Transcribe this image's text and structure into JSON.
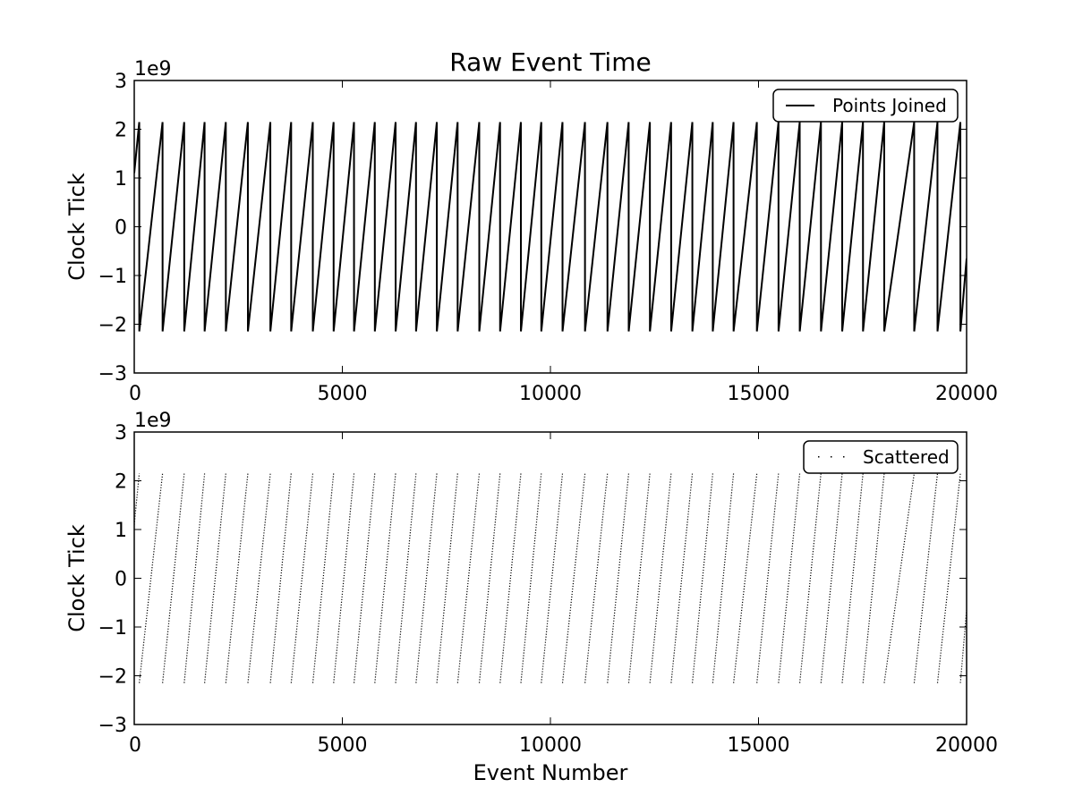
{
  "figure_title": "Raw Event Time",
  "chart_data": [
    {
      "type": "line",
      "title": "Raw Event Time",
      "xlabel": "",
      "ylabel": "Clock Tick",
      "y_offset_label": "1e9",
      "xlim": [
        0,
        20000
      ],
      "ylim": [
        -3,
        3
      ],
      "x_ticks": [
        "0",
        "5000",
        "10000",
        "15000",
        "20000"
      ],
      "y_ticks": [
        "3",
        "2",
        "1",
        "0",
        "−1",
        "−2",
        "−3"
      ],
      "y_tick_values": [
        3,
        2,
        1,
        0,
        -1,
        -2,
        -3
      ],
      "x_tick_values": [
        0,
        5000,
        10000,
        15000,
        20000
      ],
      "legend": {
        "label": "Points Joined",
        "placement": "upper right"
      },
      "grid": false,
      "series": [
        {
          "name": "Points Joined",
          "style": "solid-line",
          "color": "#000000",
          "description_of_pattern": "sawtooth wrap-around of signed 32-bit clock counter",
          "start": {
            "x": 0,
            "y": 1.1
          },
          "wrap_points_x": [
            120,
            680,
            1200,
            1690,
            2200,
            2730,
            3270,
            3770,
            4290,
            4790,
            5280,
            5780,
            6280,
            6770,
            7270,
            7770,
            8290,
            8790,
            9290,
            9780,
            10290,
            10830,
            11370,
            11880,
            12390,
            12900,
            13410,
            13900,
            14400,
            14960,
            15480,
            15990,
            16500,
            17010,
            17510,
            18020,
            18740,
            19300,
            19850
          ],
          "y_min": -2.147,
          "y_max": 2.147,
          "end": {
            "x": 20000,
            "y": -0.65
          }
        }
      ]
    },
    {
      "type": "scatter",
      "title": "",
      "xlabel": "Event Number",
      "ylabel": "Clock Tick",
      "y_offset_label": "1e9",
      "xlim": [
        0,
        20000
      ],
      "ylim": [
        -3,
        3
      ],
      "x_ticks": [
        "0",
        "5000",
        "10000",
        "15000",
        "20000"
      ],
      "y_ticks": [
        "3",
        "2",
        "1",
        "0",
        "−1",
        "−2",
        "−3"
      ],
      "y_tick_values": [
        3,
        2,
        1,
        0,
        -1,
        -2,
        -3
      ],
      "x_tick_values": [
        0,
        5000,
        10000,
        15000,
        20000
      ],
      "legend": {
        "label": "Scattered",
        "placement": "upper right"
      },
      "grid": false,
      "series": [
        {
          "name": "Scattered",
          "style": "pixel-markers",
          "color": "#000000",
          "start": {
            "x": 0,
            "y": 1.1
          },
          "wrap_points_x": [
            120,
            680,
            1200,
            1690,
            2200,
            2730,
            3270,
            3770,
            4290,
            4790,
            5280,
            5780,
            6280,
            6770,
            7270,
            7770,
            8290,
            8790,
            9290,
            9780,
            10290,
            10830,
            11370,
            11880,
            12390,
            12900,
            13410,
            13900,
            14400,
            14960,
            15480,
            15990,
            16500,
            17010,
            17510,
            18020,
            18740,
            19300,
            19850
          ],
          "y_min": -2.147,
          "y_max": 2.147,
          "end": {
            "x": 20000,
            "y": -0.65
          }
        }
      ]
    }
  ]
}
